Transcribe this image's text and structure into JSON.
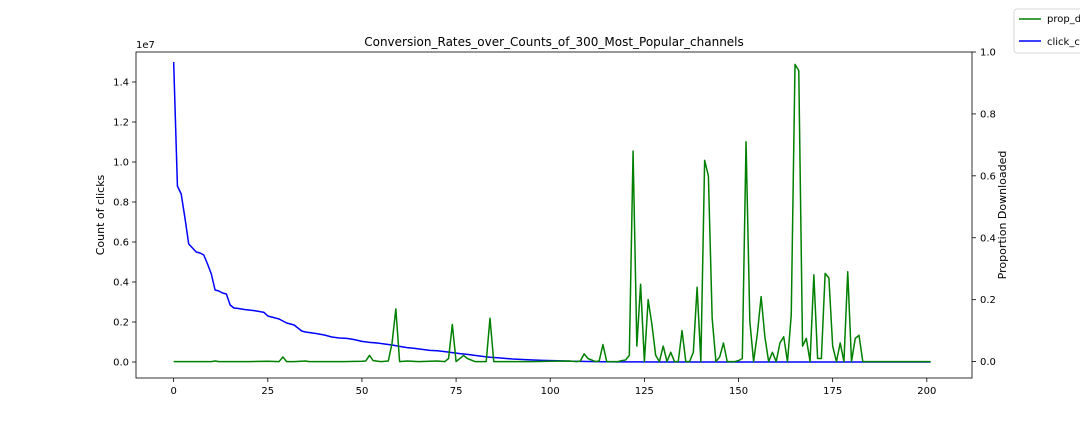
{
  "chart_data": {
    "type": "line",
    "title": "Conversion_Rates_over_Counts_of_300_Most_Popular_channels",
    "xlabel": "",
    "ylabel": "Count of clicks",
    "y2label": "Proportion Downloaded",
    "y_offset_text": "1e7",
    "xlim": [
      -10,
      212
    ],
    "ylim": [
      -800000,
      15500000
    ],
    "y2lim": [
      -0.053,
      1.0
    ],
    "x_ticks": [
      0,
      25,
      50,
      75,
      100,
      125,
      150,
      175,
      200
    ],
    "y_ticks": [
      0,
      2000000,
      4000000,
      6000000,
      8000000,
      10000000,
      12000000,
      14000000
    ],
    "y_tick_labels": [
      "0.0",
      "0.2",
      "0.4",
      "0.6",
      "0.8",
      "1.0",
      "1.2",
      "1.4"
    ],
    "y2_ticks": [
      0,
      0.2,
      0.4,
      0.6,
      0.8,
      1.0
    ],
    "y2_tick_labels": [
      "0.0",
      "0.2",
      "0.4",
      "0.6",
      "0.8",
      "1.0"
    ],
    "legend_placement": "top-right, outside plot",
    "colors": {
      "prop_downloaded": "#008000",
      "click_count": "#0000ff"
    },
    "series": [
      {
        "name": "click_count",
        "axis": "left",
        "x": [
          0,
          1,
          2,
          3,
          4,
          5,
          6,
          7,
          8,
          9,
          10,
          11,
          12,
          13,
          14,
          15,
          16,
          17,
          18,
          19,
          20,
          22,
          24,
          25,
          26,
          28,
          30,
          32,
          34,
          35,
          38,
          40,
          42,
          44,
          46,
          48,
          50,
          52,
          54,
          56,
          58,
          60,
          62,
          64,
          66,
          68,
          70,
          72,
          74,
          76,
          78,
          80,
          82,
          84,
          86,
          88,
          90,
          94,
          98,
          102,
          106,
          110,
          114,
          118,
          122,
          130,
          140,
          160,
          180,
          201
        ],
        "values": [
          15000000,
          8800000,
          8400000,
          7200000,
          5900000,
          5700000,
          5500000,
          5450000,
          5350000,
          4900000,
          4400000,
          3600000,
          3550000,
          3450000,
          3400000,
          2850000,
          2700000,
          2680000,
          2650000,
          2620000,
          2600000,
          2550000,
          2480000,
          2300000,
          2250000,
          2150000,
          1950000,
          1850000,
          1550000,
          1500000,
          1420000,
          1350000,
          1250000,
          1200000,
          1180000,
          1120000,
          1030000,
          980000,
          950000,
          900000,
          850000,
          780000,
          720000,
          680000,
          630000,
          580000,
          560000,
          520000,
          470000,
          420000,
          380000,
          330000,
          280000,
          240000,
          210000,
          180000,
          150000,
          110000,
          80000,
          60000,
          40000,
          25000,
          15000,
          8000,
          4000,
          2000,
          1000,
          500,
          200,
          100
        ]
      },
      {
        "name": "prop_downloaded",
        "axis": "right",
        "x": [
          0,
          5,
          10,
          11,
          12,
          15,
          20,
          25,
          28,
          29,
          30,
          32,
          35,
          36,
          40,
          45,
          50,
          51,
          52,
          53,
          55,
          57,
          58,
          59,
          60,
          62,
          65,
          70,
          72,
          73,
          74,
          75,
          77,
          78,
          80,
          83,
          84,
          85,
          87,
          88,
          90,
          95,
          100,
          105,
          107,
          108,
          109,
          110,
          112,
          113,
          114,
          115,
          117,
          118,
          119,
          120,
          121,
          122,
          123,
          124,
          125,
          126,
          127,
          128,
          129,
          130,
          131,
          132,
          133,
          134,
          135,
          136,
          137,
          138,
          139,
          140,
          141,
          142,
          143,
          144,
          145,
          146,
          147,
          148,
          149,
          150,
          151,
          152,
          153,
          154,
          155,
          156,
          157,
          158,
          159,
          160,
          161,
          162,
          163,
          164,
          165,
          166,
          167,
          168,
          169,
          170,
          171,
          172,
          173,
          174,
          175,
          176,
          177,
          178,
          179,
          180,
          181,
          182,
          183,
          190,
          201
        ],
        "values": [
          0,
          0,
          0,
          0.002,
          0,
          0,
          0,
          0.001,
          0,
          0.015,
          0,
          0,
          0.002,
          0,
          0,
          0,
          0.001,
          0.002,
          0.02,
          0.003,
          0,
          0.002,
          0.06,
          0.17,
          0,
          0.002,
          0,
          0.002,
          0,
          0.01,
          0.12,
          0,
          0.02,
          0.01,
          0,
          0,
          0.14,
          0,
          0,
          0,
          0,
          0,
          0.001,
          0.002,
          0,
          0.002,
          0.025,
          0.01,
          0,
          0.002,
          0.055,
          0,
          0,
          0,
          0.003,
          0.005,
          0.02,
          0.68,
          0.05,
          0.25,
          0,
          0.2,
          0.12,
          0.02,
          0,
          0.05,
          0,
          0.03,
          0,
          0,
          0.1,
          0,
          0,
          0.03,
          0.24,
          0,
          0.65,
          0.6,
          0.14,
          0,
          0.015,
          0.06,
          0,
          0,
          0,
          0.003,
          0.01,
          0.71,
          0.13,
          0,
          0.09,
          0.21,
          0.08,
          0,
          0.03,
          0,
          0.06,
          0.08,
          0,
          0.15,
          0.96,
          0.94,
          0.05,
          0.075,
          0,
          0.28,
          0.01,
          0.01,
          0.285,
          0.27,
          0.05,
          0,
          0.06,
          0,
          0.29,
          0,
          0.075,
          0.085,
          0,
          0,
          0
        ]
      }
    ]
  }
}
